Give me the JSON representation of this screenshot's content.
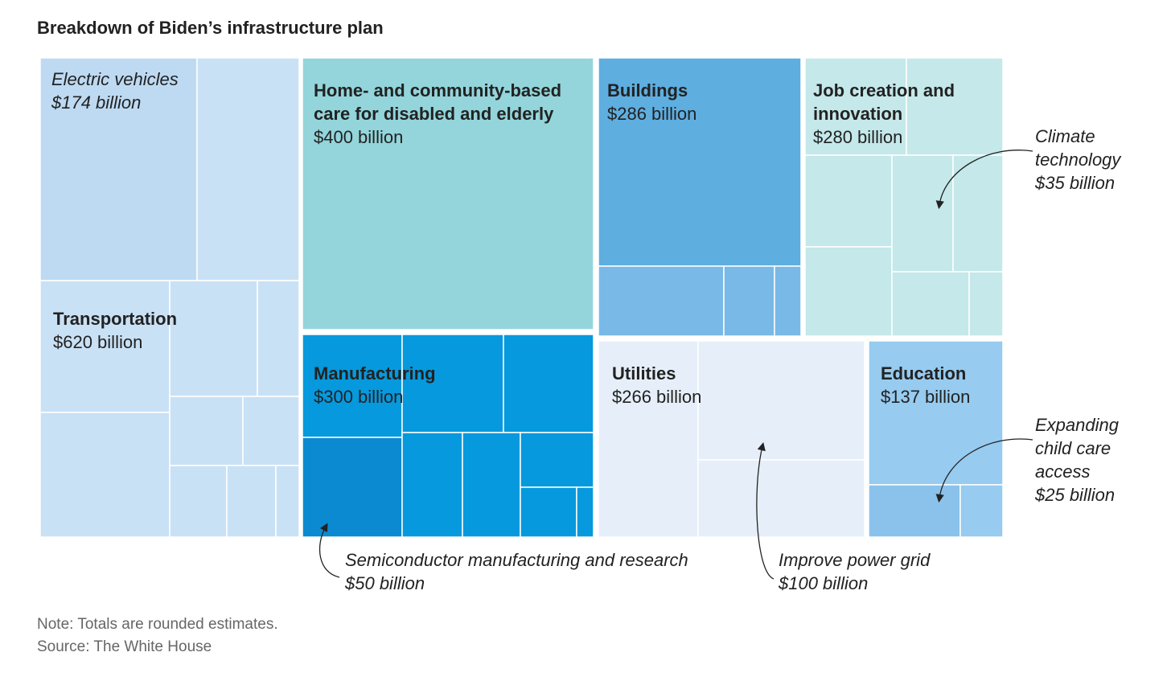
{
  "chart_data": {
    "type": "treemap",
    "title": "Breakdown of Biden’s infrastructure plan",
    "unit": "billion USD",
    "categories": [
      {
        "name": "Transportation",
        "value": 620,
        "label_value": "$620 billion",
        "highlight": {
          "name": "Electric vehicles",
          "value": 174,
          "label_value": "$174 billion"
        }
      },
      {
        "name": "Home- and community-based care for disabled and elderly",
        "value": 400,
        "label_value": "$400 billion"
      },
      {
        "name": "Manufacturing",
        "value": 300,
        "label_value": "$300 billion",
        "highlight": {
          "name": "Semiconductor manufacturing and research",
          "value": 50,
          "label_value": "$50 billion"
        }
      },
      {
        "name": "Buildings",
        "value": 286,
        "label_value": "$286 billion"
      },
      {
        "name": "Job creation and innovation",
        "value": 280,
        "label_value": "$280 billion",
        "highlight": {
          "name": "Climate technology",
          "value": 35,
          "label_value": "$35 billion"
        }
      },
      {
        "name": "Utilities",
        "value": 266,
        "label_value": "$266 billion",
        "highlight": {
          "name": "Improve power grid",
          "value": 100,
          "label_value": "$100 billion"
        }
      },
      {
        "name": "Education",
        "value": 137,
        "label_value": "$137 billion",
        "highlight": {
          "name": "Expanding child care access",
          "value": 25,
          "label_value": "$25 billion"
        }
      }
    ],
    "colors": {
      "transportation": "#c9e1f5",
      "electric_vehicles": "#bddaf2",
      "care": "#93d5db",
      "manufacturing": "#0699dd",
      "semiconductor": "#0b8ad2",
      "buildings_main": "#5eaee0",
      "buildings_sub": "#78b9e7",
      "job_creation": "#c5e8ea",
      "utilities": "#e6eff9",
      "education": "#97cbef",
      "child_care": "#8ac2ec"
    }
  },
  "note": "Note: Totals are rounded estimates.",
  "source": "Source: The White House"
}
